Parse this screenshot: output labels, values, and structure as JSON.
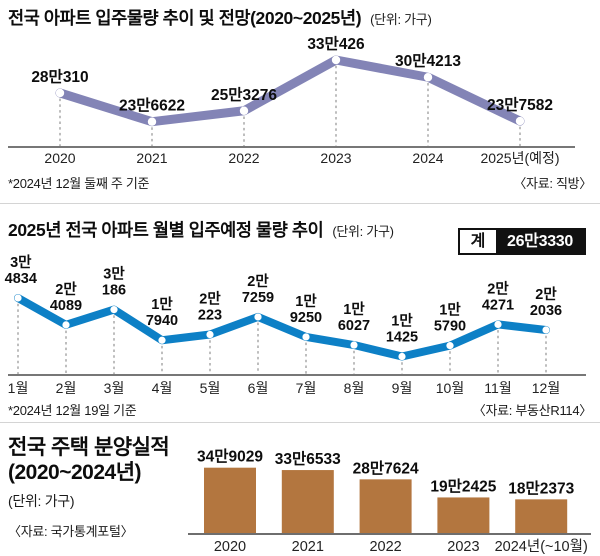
{
  "sections": {
    "annual": {
      "title": "전국 아파트 입주물량 추이 및 전망(2020~2025년)",
      "unit": "(단위: 가구)",
      "footnote": "*2024년 12월 둘째 주 기준",
      "source": "〈자료: 직방〉"
    },
    "monthly": {
      "title": "2025년 전국 아파트 월별 입주예정 물량 추이",
      "unit": "(단위: 가구)",
      "total_label": "계",
      "total_value": "26만3330",
      "footnote": "*2024년 12월 19일 기준",
      "source": "〈자료: 부동산R114〉"
    },
    "sales": {
      "title_line1": "전국 주택 분양실적",
      "title_line2": "(2020~2024년)",
      "unit": "(단위: 가구)",
      "source": "〈자료: 국가통계포털〉"
    }
  },
  "colors": {
    "annual_line": "#8384b6",
    "monthly_line": "#0d80c6",
    "sales_bar": "#b3763f",
    "axis": "#4a4a4a",
    "leader": "#9b9b9b",
    "text": "#0d0d0d",
    "category": "#222222",
    "badge_bg": "#111111",
    "badge_fg": "#ffffff"
  },
  "chart_data": [
    {
      "id": "annual-movein-line",
      "type": "line",
      "title": "전국 아파트 입주물량 추이 및 전망(2020~2025년)",
      "ylabel": "가구",
      "legend_position": "none",
      "grid": false,
      "categories": [
        "2020",
        "2021",
        "2022",
        "2023",
        "2024",
        "2025년(예정)"
      ],
      "values": [
        280310,
        236622,
        253276,
        330426,
        304213,
        237582
      ],
      "point_labels": [
        "28만310",
        "23만6622",
        "25만3276",
        "33만426",
        "30만4213",
        "23만7582"
      ]
    },
    {
      "id": "monthly-2025-line",
      "type": "line",
      "title": "2025년 전국 아파트 월별 입주예정 물량 추이",
      "ylabel": "가구",
      "legend_position": "none",
      "grid": false,
      "categories": [
        "1월",
        "2월",
        "3월",
        "4월",
        "5월",
        "6월",
        "7월",
        "8월",
        "9월",
        "10월",
        "11월",
        "12월"
      ],
      "values": [
        34834,
        24089,
        30186,
        17940,
        20223,
        27259,
        19250,
        16027,
        11425,
        15790,
        24271,
        22036
      ],
      "point_labels": [
        [
          "3만",
          "4834"
        ],
        [
          "2만",
          "4089"
        ],
        [
          "3만",
          "186"
        ],
        [
          "1만",
          "7940"
        ],
        [
          "2만",
          "223"
        ],
        [
          "2만",
          "7259"
        ],
        [
          "1만",
          "9250"
        ],
        [
          "1만",
          "6027"
        ],
        [
          "1만",
          "1425"
        ],
        [
          "1만",
          "5790"
        ],
        [
          "2만",
          "4271"
        ],
        [
          "2만",
          "2036"
        ]
      ],
      "total": 263330
    },
    {
      "id": "sales-bar",
      "type": "bar",
      "title": "전국 주택 분양실적(2020~2024년)",
      "ylabel": "가구",
      "legend_position": "none",
      "grid": false,
      "categories": [
        "2020",
        "2021",
        "2022",
        "2023",
        "2024년(~10월)"
      ],
      "values": [
        349029,
        336533,
        287624,
        192425,
        182373
      ],
      "point_labels": [
        "34만9029",
        "33만6533",
        "28만7624",
        "19만2425",
        "18만2373"
      ]
    }
  ]
}
